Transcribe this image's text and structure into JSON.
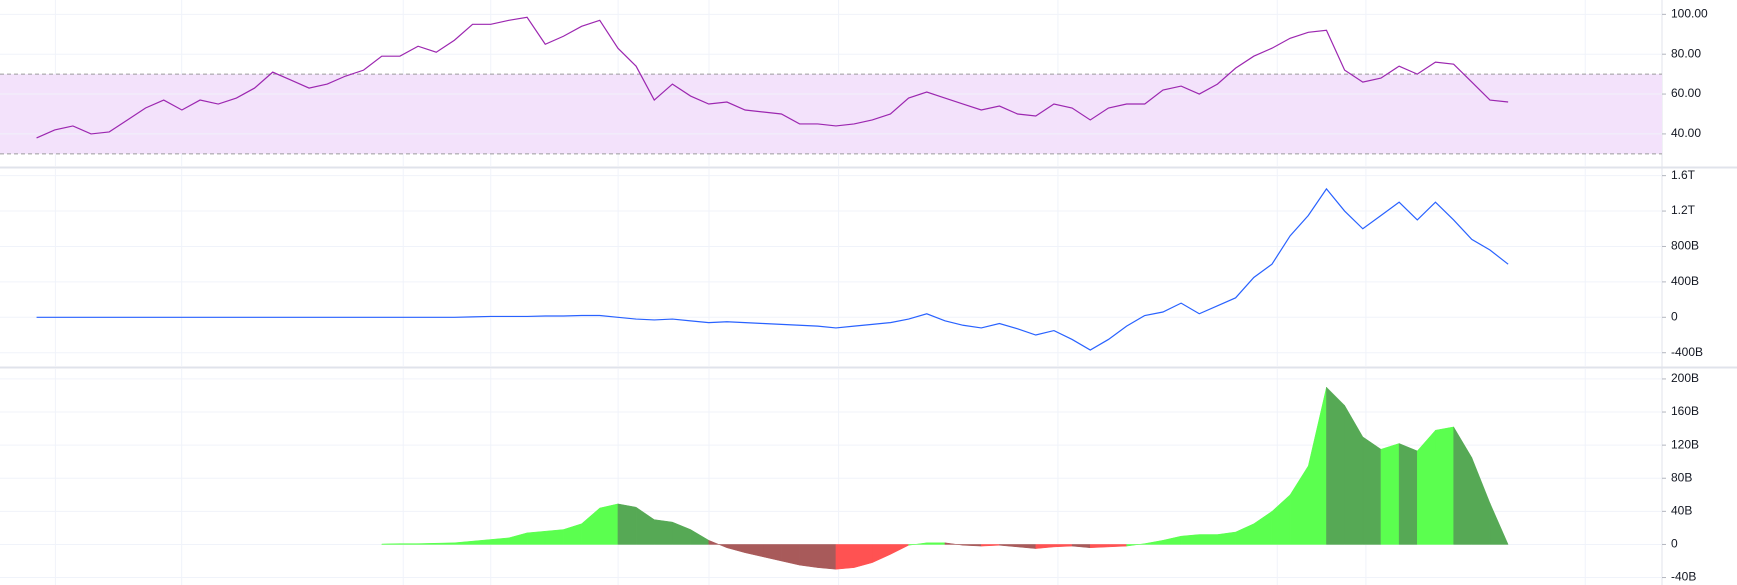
{
  "chart_data": [
    {
      "type": "line",
      "color": "#9c27b0",
      "band": [
        30,
        70
      ],
      "band_color": "#f3e2fb",
      "ylim": [
        23.9,
        107.2
      ],
      "yticks": [
        {
          "value": 100,
          "label": "100.00"
        },
        {
          "value": 80,
          "label": "80.00"
        },
        {
          "value": 60,
          "label": "60.00"
        },
        {
          "value": 40,
          "label": "40.00"
        }
      ],
      "values": [
        38,
        42,
        44,
        40,
        41,
        47,
        53,
        57,
        52,
        57,
        55,
        58,
        63,
        71,
        67,
        63,
        65,
        69,
        72,
        79,
        79,
        84,
        81,
        87,
        95,
        95,
        97,
        98.5,
        85,
        89,
        94,
        97,
        83,
        74,
        57,
        65,
        59,
        55,
        56,
        52,
        51,
        50,
        45,
        45,
        44,
        45,
        47,
        50,
        58,
        61,
        58,
        55,
        52,
        54,
        50,
        49,
        55,
        53,
        47,
        53,
        55,
        55,
        62,
        64,
        60,
        65,
        73,
        79,
        83,
        88,
        91,
        92,
        72,
        66,
        68,
        74,
        70,
        76,
        75,
        66,
        57,
        56
      ]
    },
    {
      "type": "line",
      "color": "#2962ff",
      "ylim": [
        -550000000000.0,
        1675000000000.0
      ],
      "yticks": [
        {
          "value": 1600000000000.0,
          "label": "1.6T"
        },
        {
          "value": 1200000000000.0,
          "label": "1.2T"
        },
        {
          "value": 800000000000.0,
          "label": "800B"
        },
        {
          "value": 400000000000.0,
          "label": "400B"
        },
        0,
        {
          "value": -400000000000.0,
          "label": "-400B"
        }
      ],
      "values": [
        0,
        0,
        0,
        0,
        0,
        0,
        0,
        0,
        0,
        0,
        0,
        0,
        0,
        0,
        0,
        0,
        0,
        0,
        0,
        0,
        0,
        0,
        0,
        0,
        5000000000.0,
        10000000000.0,
        10000000000.0,
        10000000000.0,
        15000000000.0,
        15000000000.0,
        20000000000.0,
        20000000000.0,
        0,
        -20000000000.0,
        -30000000000.0,
        -20000000000.0,
        -40000000000.0,
        -60000000000.0,
        -50000000000.0,
        -60000000000.0,
        -70000000000.0,
        -80000000000.0,
        -90000000000.0,
        -100000000000.0,
        -120000000000.0,
        -100000000000.0,
        -80000000000.0,
        -60000000000.0,
        -20000000000.0,
        40000000000.0,
        -40000000000.0,
        -90000000000.0,
        -120000000000.0,
        -70000000000.0,
        -130000000000.0,
        -200000000000.0,
        -150000000000.0,
        -250000000000.0,
        -370000000000.0,
        -250000000000.0,
        -100000000000.0,
        20000000000.0,
        60000000000.0,
        160000000000.0,
        40000000000.0,
        130000000000.0,
        220000000000.0,
        450000000000.0,
        600000000000.0,
        920000000000.0,
        1150000000000.0,
        1450000000000.0,
        1200000000000.0,
        1000000000000.0,
        1150000000000.0,
        1300000000000.0,
        1100000000000.0,
        1300000000000.0,
        1100000000000.0,
        880000000000.0,
        760000000000.0,
        600000000000.0
      ]
    },
    {
      "type": "area",
      "palette": {
        "rise_pos": "#5bff4f",
        "fall_pos": "#56a955",
        "fall_neg": "#a85a5a",
        "rise_neg": "#ff5252"
      },
      "ylim": [
        -49000000000.0,
        212000000000.0
      ],
      "yticks": [
        {
          "value": 200000000000.0,
          "label": "200B"
        },
        {
          "value": 160000000000.0,
          "label": "160B"
        },
        {
          "value": 120000000000.0,
          "label": "120B"
        },
        {
          "value": 80000000000.0,
          "label": "80B"
        },
        {
          "value": 40000000000.0,
          "label": "40B"
        },
        0,
        {
          "value": -40000000000.0,
          "label": "-40B"
        }
      ],
      "values": [
        null,
        null,
        null,
        null,
        null,
        null,
        null,
        null,
        null,
        null,
        null,
        null,
        null,
        null,
        null,
        null,
        null,
        null,
        null,
        500000000.0,
        1000000000.0,
        1000000000.0,
        1500000000.0,
        2000000000.0,
        4000000000.0,
        6000000000.0,
        8000000000.0,
        14000000000.0,
        16000000000.0,
        18000000000.0,
        25000000000.0,
        44000000000.0,
        49000000000.0,
        45000000000.0,
        30000000000.0,
        27000000000.0,
        18000000000.0,
        5000000000.0,
        -4000000000.0,
        -10000000000.0,
        -15000000000.0,
        -20000000000.0,
        -25000000000.0,
        -28000000000.0,
        -30000000000.0,
        -28000000000.0,
        -22000000000.0,
        -12000000000.0,
        -1000000000.0,
        2000000000.0,
        2000000000.0,
        -1000000000.0,
        -2000000000.0,
        -1000000000.0,
        -3000000000.0,
        -5000000000.0,
        -3000000000.0,
        -2000000000.0,
        -4000000000.0,
        -3000000000.0,
        -2000000000.0,
        1000000000.0,
        5000000000.0,
        10000000000.0,
        12000000000.0,
        12000000000.0,
        15000000000.0,
        25000000000.0,
        40000000000.0,
        60000000000.0,
        95000000000.0,
        190000000000.0,
        168000000000.0,
        130000000000.0,
        115000000000.0,
        122000000000.0,
        113000000000.0,
        138000000000.0,
        142000000000.0,
        105000000000.0,
        50000000000.0,
        0
      ]
    }
  ]
}
